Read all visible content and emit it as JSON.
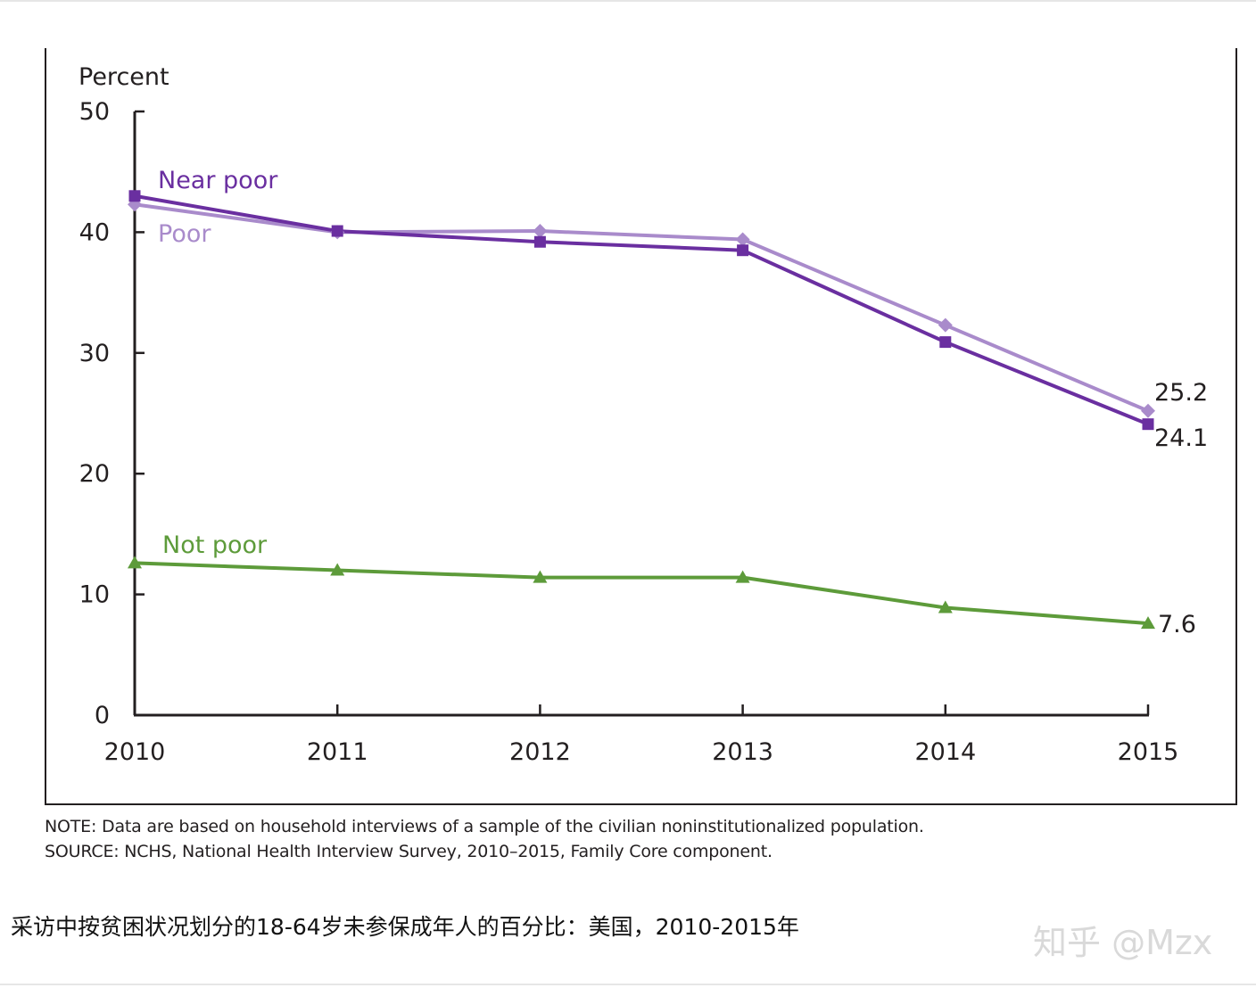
{
  "chart_data": {
    "type": "line",
    "title": "",
    "ylabel": "Percent",
    "xlabel": "",
    "x": [
      "2010",
      "2011",
      "2012",
      "2013",
      "2014",
      "2015"
    ],
    "ylim": [
      0,
      50
    ],
    "yticks": [
      "0",
      "10",
      "20",
      "30",
      "40",
      "50"
    ],
    "grid": false,
    "series": [
      {
        "name": "Near poor",
        "color": "#6a2fa0",
        "marker": "square",
        "values": [
          43.0,
          40.1,
          39.2,
          38.5,
          30.9,
          24.1
        ],
        "end_label": "24.1"
      },
      {
        "name": "Poor",
        "color": "#a98bcb",
        "marker": "diamond",
        "values": [
          42.3,
          40.0,
          40.1,
          39.4,
          32.3,
          25.2
        ],
        "end_label": "25.2"
      },
      {
        "name": "Not poor",
        "color": "#5d9b3a",
        "marker": "triangle",
        "values": [
          12.6,
          12.0,
          11.4,
          11.4,
          8.9,
          7.6
        ],
        "end_label": "7.6"
      }
    ]
  },
  "note": "NOTE: Data are based on household interviews of a sample of the civilian noninstitutionalized population.",
  "source": "SOURCE: NCHS, National Health Interview Survey, 2010–2015, Family Core component.",
  "caption": "采访中按贫困状况划分的18-64岁未参保成年人的百分比：美国，2010-2015年",
  "watermark": "知乎 @Mzx",
  "colors": {
    "axis": "#231f20",
    "frame": "#231f20"
  }
}
